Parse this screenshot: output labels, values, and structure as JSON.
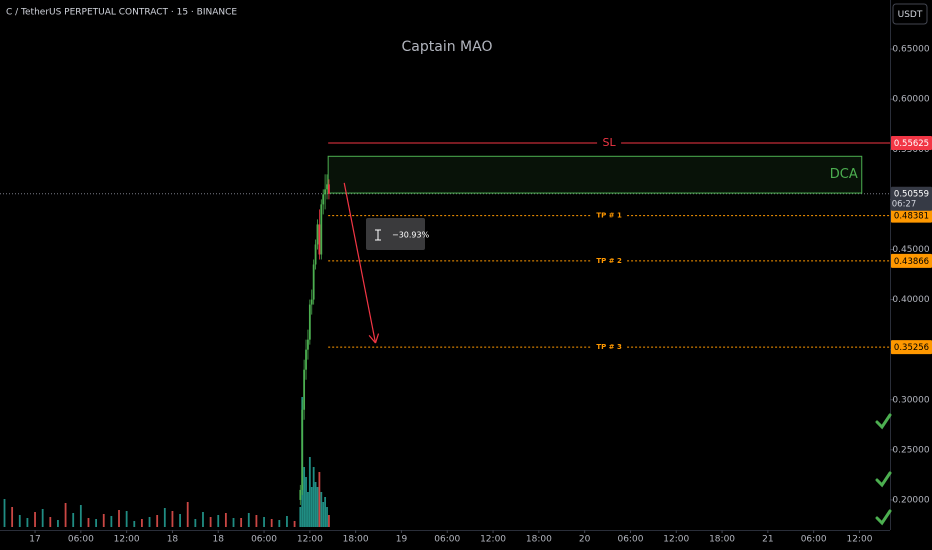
{
  "chart_data": {
    "type": "candlestick",
    "title": "C / TetherUS PERPETUAL CONTRACT · 15 · BINANCE",
    "watermark": "Captain MAO",
    "currency": "USDT",
    "xlim": [
      -4.59,
      112
    ],
    "ylim": [
      0.17,
      0.699
    ],
    "xticks": [
      {
        "value": 0,
        "label": "17"
      },
      {
        "value": 6,
        "label": "06:00"
      },
      {
        "value": 12,
        "label": "12:00"
      },
      {
        "value": 18,
        "label": "18"
      },
      {
        "value": 24,
        "label": "18"
      },
      {
        "value": 30,
        "label": "06:00"
      },
      {
        "value": 36,
        "label": "12:00"
      },
      {
        "value": 42,
        "label": "18:00"
      },
      {
        "value": 48,
        "label": "19"
      },
      {
        "value": 54,
        "label": "06:00"
      },
      {
        "value": 60,
        "label": "12:00"
      },
      {
        "value": 66,
        "label": "18:00"
      },
      {
        "value": 72,
        "label": "20"
      },
      {
        "value": 78,
        "label": "06:00"
      },
      {
        "value": 84,
        "label": "12:00"
      },
      {
        "value": 90,
        "label": "18:00"
      },
      {
        "value": 96,
        "label": "21"
      },
      {
        "value": 102,
        "label": "06:00"
      },
      {
        "value": 108,
        "label": "12:00"
      }
    ],
    "yticks": [
      {
        "value": 0.2,
        "label": "0.20000"
      },
      {
        "value": 0.25,
        "label": "0.25000"
      },
      {
        "value": 0.3,
        "label": "0.30000"
      },
      {
        "value": 0.35,
        "label": "0.35000"
      },
      {
        "value": 0.4,
        "label": "0.40000"
      },
      {
        "value": 0.45,
        "label": "0.45000"
      },
      {
        "value": 0.5,
        "label": "0.50000"
      },
      {
        "value": 0.55,
        "label": "0.55000"
      },
      {
        "value": 0.6,
        "label": "0.60000"
      },
      {
        "value": 0.65,
        "label": "0.65000"
      }
    ],
    "up_color": "#4caf50",
    "down_color": "#f23645",
    "candles": {
      "x": [
        34.75,
        35,
        35.25,
        35.5,
        35.75,
        36,
        36.25,
        36.5,
        36.75,
        37,
        37.25,
        37.5,
        37.75,
        38,
        38.25,
        38.5
      ],
      "open": [
        0.2,
        0.21,
        0.29,
        0.33,
        0.35,
        0.36,
        0.395,
        0.4,
        0.435,
        0.455,
        0.475,
        0.445,
        0.495,
        0.505,
        0.51,
        0.515
      ],
      "high": [
        0.215,
        0.3,
        0.34,
        0.36,
        0.37,
        0.4,
        0.41,
        0.44,
        0.46,
        0.48,
        0.49,
        0.5,
        0.51,
        0.525,
        0.525,
        0.52
      ],
      "low": [
        0.195,
        0.205,
        0.28,
        0.32,
        0.34,
        0.355,
        0.385,
        0.395,
        0.43,
        0.45,
        0.44,
        0.44,
        0.485,
        0.49,
        0.5,
        0.5
      ],
      "close": [
        0.21,
        0.29,
        0.33,
        0.35,
        0.36,
        0.395,
        0.4,
        0.435,
        0.455,
        0.475,
        0.445,
        0.495,
        0.505,
        0.51,
        0.515,
        0.50559
      ]
    },
    "volume": [
      {
        "name": "up",
        "color": "#26a69a",
        "x": [
          -4,
          -2,
          -1,
          1,
          3,
          5,
          6,
          8,
          10,
          12,
          13,
          15,
          17,
          19,
          21,
          22,
          24,
          26,
          28,
          30,
          32,
          33,
          34.75,
          35,
          35.25,
          35.5,
          35.75,
          36,
          36.25,
          36.5,
          36.75,
          37,
          37.5,
          37.75,
          38,
          38.25
        ],
        "values": [
          28,
          12,
          9,
          18,
          7,
          14,
          22,
          8,
          11,
          16,
          6,
          10,
          19,
          13,
          8,
          15,
          12,
          9,
          14,
          10,
          7,
          11,
          20,
          130,
          60,
          50,
          35,
          70,
          40,
          60,
          45,
          40,
          35,
          25,
          30,
          20
        ]
      },
      {
        "name": "down",
        "color": "#ef5350",
        "x": [
          -3,
          0,
          2,
          4,
          7,
          9,
          11,
          14,
          16,
          18,
          20,
          23,
          25,
          27,
          29,
          31,
          34,
          37.25,
          38.5
        ],
        "values": [
          20,
          15,
          10,
          24,
          9,
          13,
          17,
          8,
          12,
          16,
          25,
          10,
          14,
          9,
          12,
          8,
          6,
          55,
          12
        ]
      }
    ],
    "last_price": 0.50559,
    "countdown": "06:27",
    "levels": [
      {
        "name": "SL",
        "value": 0.55625,
        "color": "#f23645",
        "style": "solid"
      },
      {
        "name": "TP # 1",
        "value": 0.48381,
        "color": "#ff9800",
        "style": "dotted"
      },
      {
        "name": "TP # 2",
        "value": 0.43866,
        "color": "#ff9800",
        "style": "dotted"
      },
      {
        "name": "TP # 3",
        "value": 0.35256,
        "color": "#ff9800",
        "style": "dotted"
      }
    ],
    "zone": {
      "label": "DCA",
      "x": [
        38.4,
        108.3
      ],
      "y": [
        0.5063,
        0.543
      ],
      "color": "#4caf50"
    },
    "measure": {
      "label": "−30.93%",
      "from": [
        40.5,
        0.5165
      ],
      "to": [
        44.6,
        0.3566
      ],
      "color": "#f23645"
    }
  }
}
